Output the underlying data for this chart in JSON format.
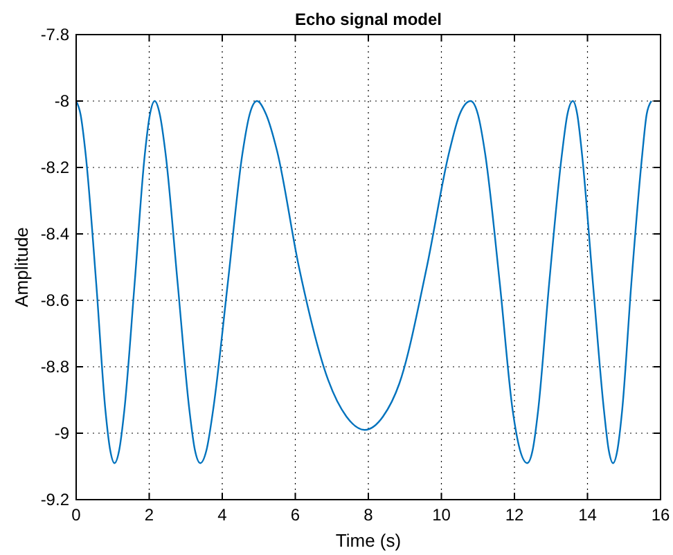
{
  "chart_data": {
    "type": "line",
    "title": "Echo signal model",
    "xlabel": "Time (s)",
    "ylabel": "Amplitude",
    "xlim": [
      0,
      16
    ],
    "xticks": [
      0,
      2,
      4,
      6,
      8,
      10,
      12,
      14,
      16
    ],
    "ylim": [
      -9.2,
      -7.8
    ],
    "yticks": [
      -9.2,
      -9,
      -8.8,
      -8.6,
      -8.4,
      -8.2,
      -8,
      -7.8
    ],
    "grid": true,
    "line_style": "solid",
    "series": [
      {
        "color": "#0072bd",
        "x": [
          0,
          0.12,
          0.26,
          0.55,
          0.8,
          0.93,
          1.05,
          1.18,
          1.32,
          1.6,
          1.88,
          2.02,
          2.15,
          2.29,
          2.45,
          2.78,
          3.1,
          3.25,
          3.4,
          3.57,
          3.75,
          4.15,
          4.55,
          4.75,
          4.95,
          5.2,
          5.5,
          6.1,
          6.9,
          7.4,
          7.9,
          8.4,
          8.85,
          9.6,
          10.2,
          10.5,
          10.8,
          11,
          11.2,
          11.6,
          11.95,
          12.15,
          12.35,
          12.5,
          12.65,
          12.95,
          13.3,
          13.45,
          13.6,
          13.72,
          13.85,
          14.15,
          14.45,
          14.58,
          14.7,
          14.82,
          14.95,
          15.2,
          15.5,
          15.62,
          15.75
        ],
        "values": [
          -8,
          -8.04,
          -8.16,
          -8.55,
          -8.93,
          -9.05,
          -9.09,
          -9.05,
          -8.93,
          -8.55,
          -8.16,
          -8.04,
          -8,
          -8.04,
          -8.16,
          -8.55,
          -8.93,
          -9.05,
          -9.09,
          -9.05,
          -8.93,
          -8.55,
          -8.16,
          -8.04,
          -8,
          -8.04,
          -8.15,
          -8.5,
          -8.84,
          -8.95,
          -8.99,
          -8.95,
          -8.85,
          -8.5,
          -8.16,
          -8.04,
          -8,
          -8.04,
          -8.16,
          -8.55,
          -8.93,
          -9.05,
          -9.09,
          -9.05,
          -8.93,
          -8.55,
          -8.16,
          -8.04,
          -8,
          -8.04,
          -8.16,
          -8.55,
          -8.93,
          -9.05,
          -9.09,
          -9.05,
          -8.93,
          -8.55,
          -8.16,
          -8.04,
          -8
        ]
      }
    ]
  }
}
